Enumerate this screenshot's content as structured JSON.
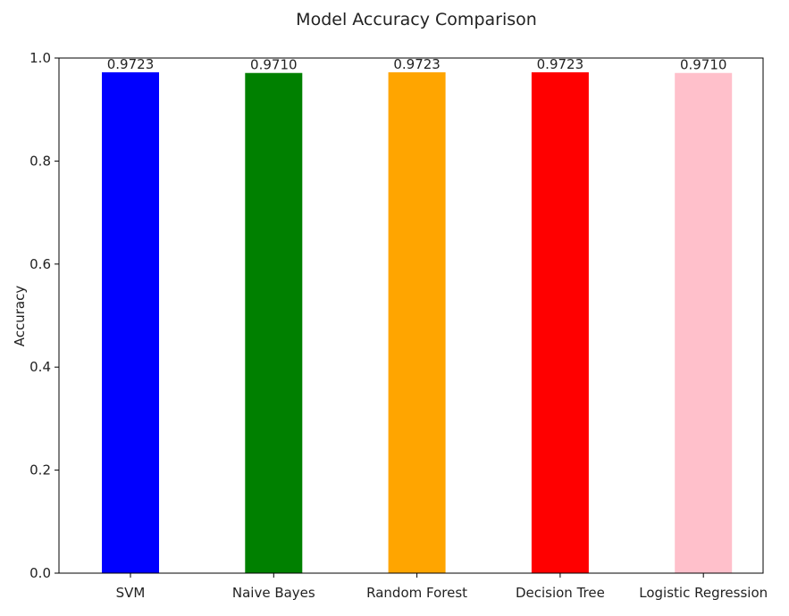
{
  "chart_data": {
    "type": "bar",
    "title": "Model Accuracy Comparison",
    "xlabel": "",
    "ylabel": "Accuracy",
    "categories": [
      "SVM",
      "Naive Bayes",
      "Random Forest",
      "Decision Tree",
      "Logistic Regression"
    ],
    "values": [
      0.9723,
      0.971,
      0.9723,
      0.9723,
      0.971
    ],
    "value_labels": [
      "0.9723",
      "0.9710",
      "0.9723",
      "0.9723",
      "0.9710"
    ],
    "colors": [
      "#0000ff",
      "#008000",
      "#ffa500",
      "#ff0000",
      "#ffc0cb"
    ],
    "ylim": [
      0,
      1.0
    ],
    "yticks": [
      "0.0",
      "0.2",
      "0.4",
      "0.6",
      "0.8",
      "1.0"
    ],
    "grid": false,
    "legend": "none"
  }
}
